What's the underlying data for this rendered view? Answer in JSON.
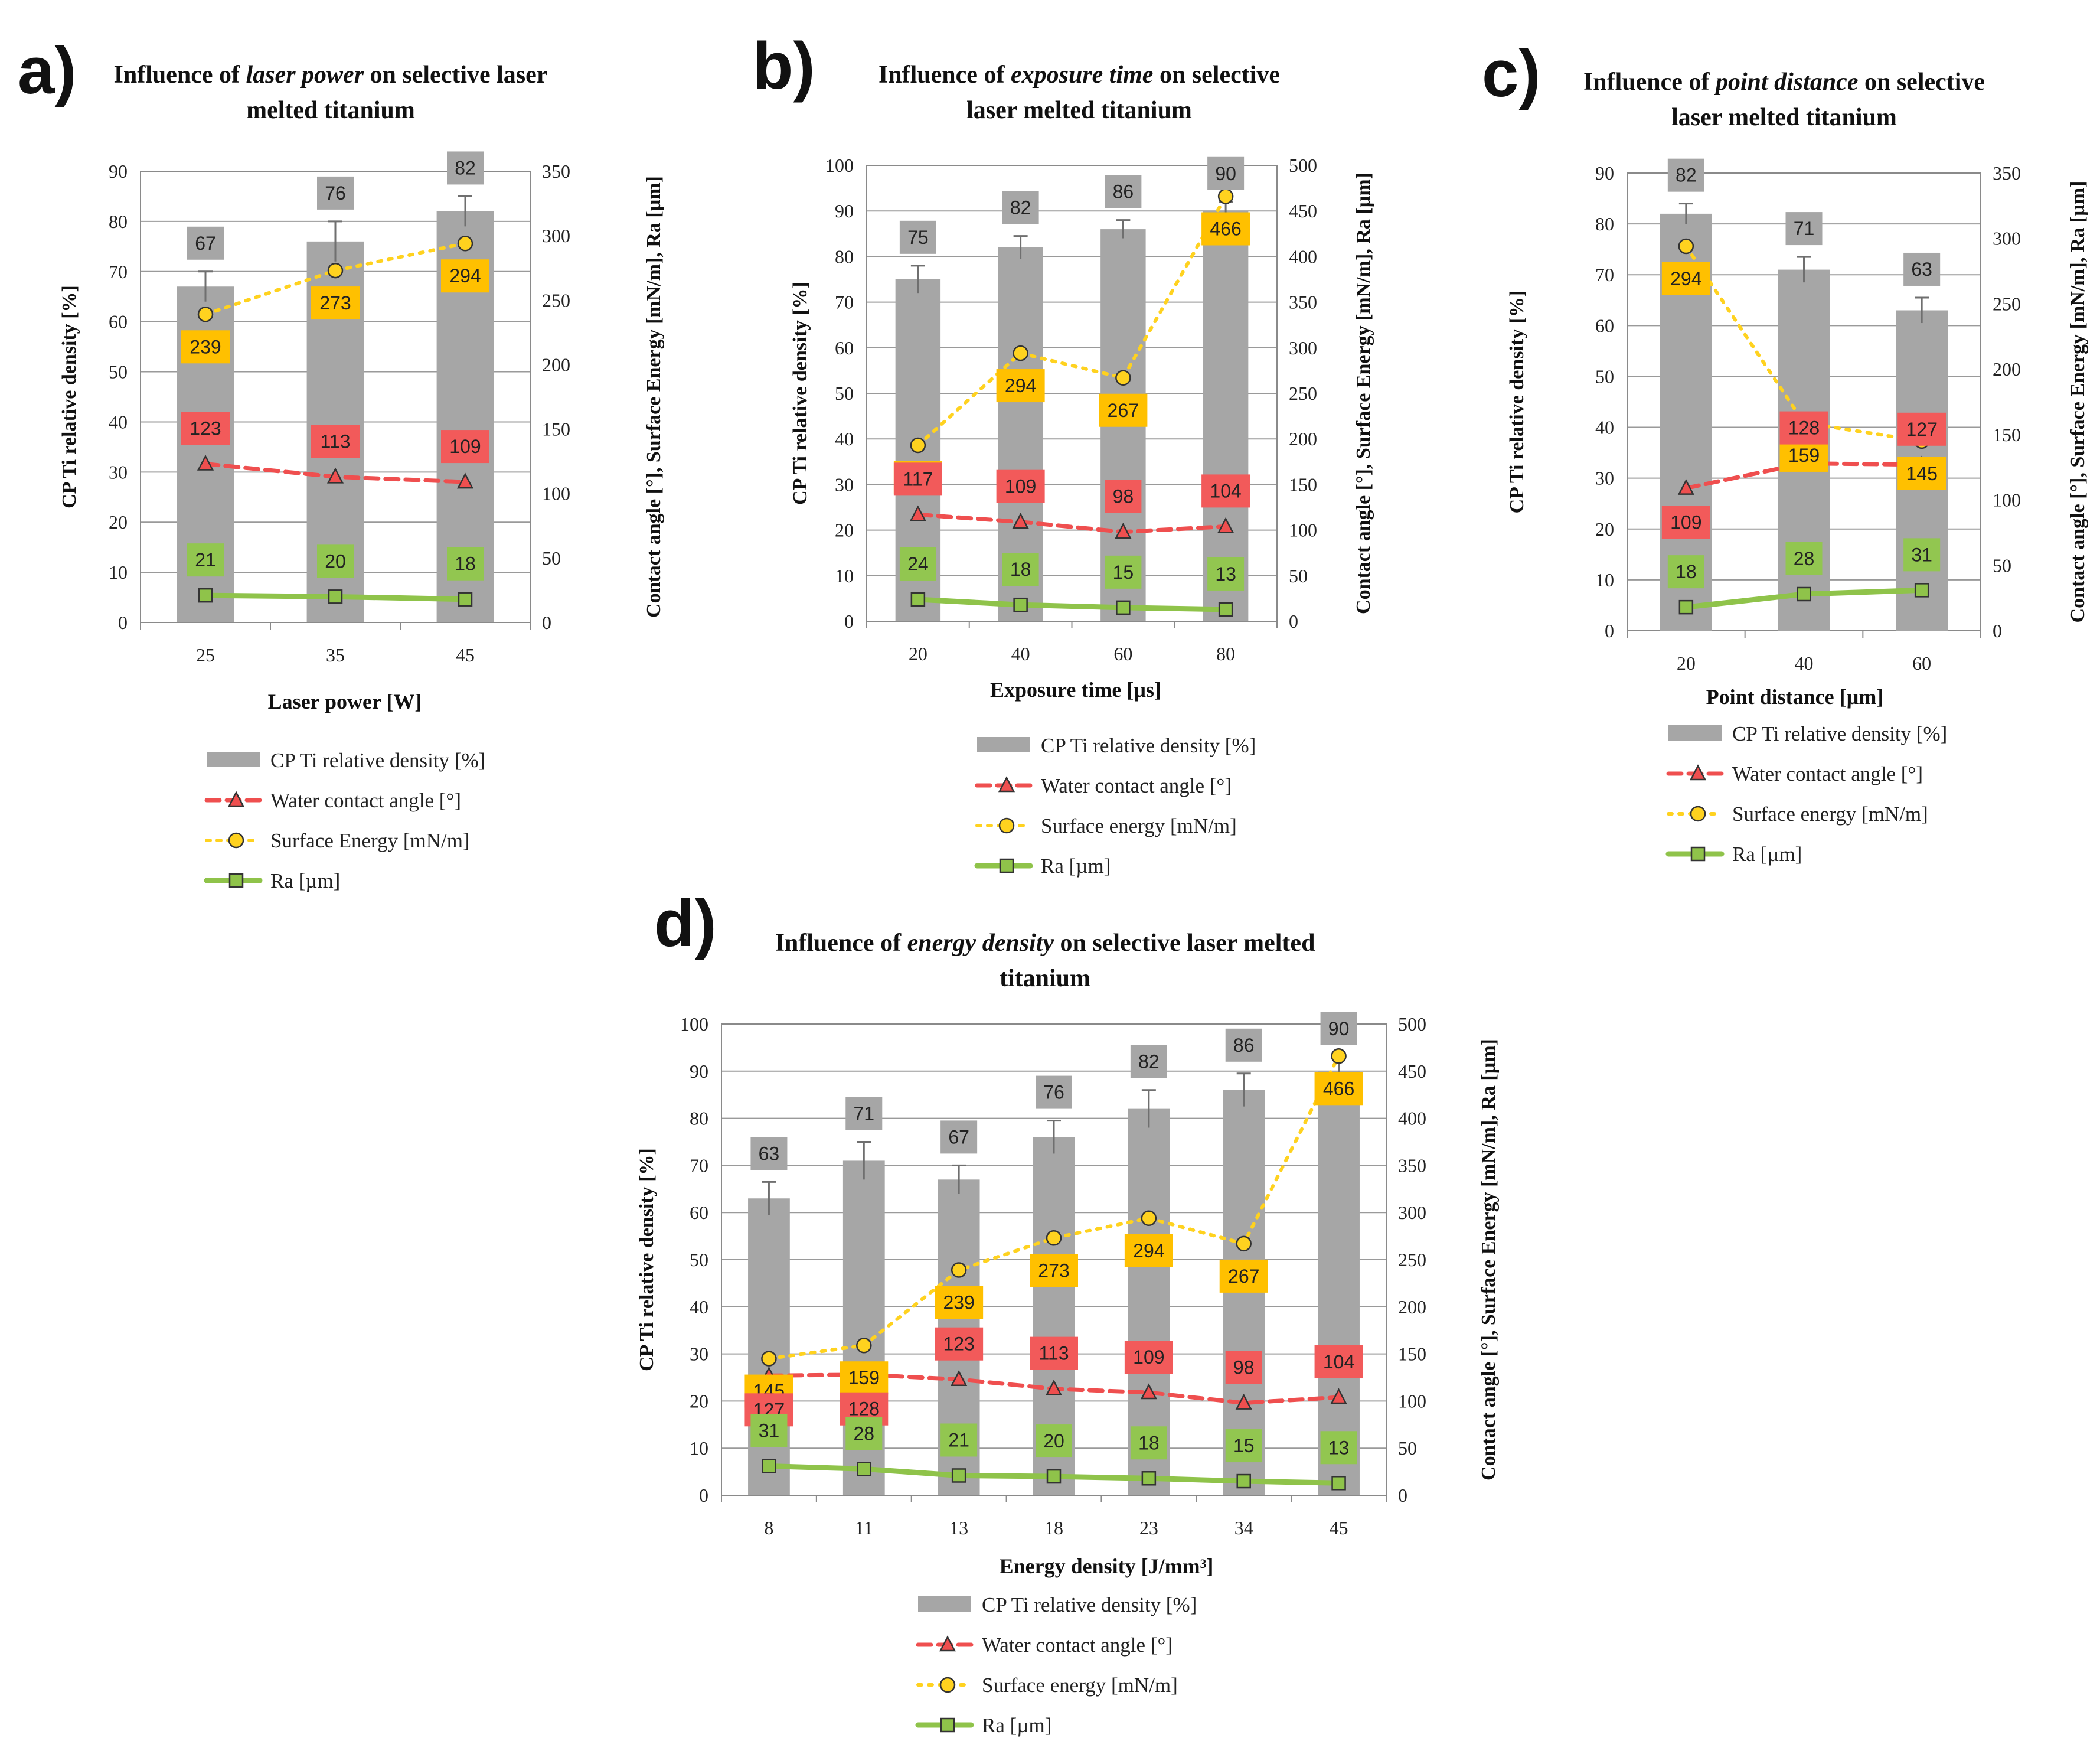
{
  "colors": {
    "bar": "#a6a6a6",
    "bar_label_bg": "#a6a6a6",
    "contact": "#ef4f4f",
    "contact_label_bg": "#f25a5a",
    "surface": "#ffd21f",
    "surface_label_bg": "#ffc000",
    "ra": "#8fc34a",
    "ra_label_bg": "#92c650",
    "errorbar": "#6f6f6f"
  },
  "chart_data": [
    {
      "id": "a",
      "type": "bar",
      "letter": "a)",
      "title_parts": [
        {
          "text": "Influence of ",
          "italic": false
        },
        {
          "text": "laser power",
          "italic": true
        },
        {
          "text": " on selective laser",
          "italic": false
        }
      ],
      "title_line2": "melted titanium",
      "categories": [
        "25",
        "35",
        "45"
      ],
      "xlabel": "Laser power [W]",
      "ylabel_left": "CP Ti relative density [%]",
      "ylabel_right": "Contact angle [°], Surface Energy [mN/m], Ra [µm]",
      "ylim_left": [
        0,
        90
      ],
      "ylim_right": [
        0,
        350
      ],
      "yticks_left": [
        "0",
        "10",
        "20",
        "30",
        "40",
        "50",
        "60",
        "70",
        "80",
        "90"
      ],
      "yticks_right": [
        "0",
        "50",
        "100",
        "150",
        "200",
        "250",
        "300",
        "350"
      ],
      "density": [
        67,
        76,
        82
      ],
      "density_err": [
        3,
        4,
        3
      ],
      "contact_angle": [
        123,
        113,
        109
      ],
      "surface_energy": [
        239,
        273,
        294
      ],
      "ra": [
        21,
        20,
        18
      ],
      "legend": [
        {
          "kind": "bar",
          "label": "CP Ti relative density [%]"
        },
        {
          "kind": "contact",
          "label": "Water contact angle [°]"
        },
        {
          "kind": "surface",
          "label": "Surface Energy [mN/m]"
        },
        {
          "kind": "ra",
          "label": "Ra [µm]"
        }
      ]
    },
    {
      "id": "b",
      "type": "bar",
      "letter": "b)",
      "title_parts": [
        {
          "text": "Influence of ",
          "italic": false
        },
        {
          "text": "exposure time",
          "italic": true
        },
        {
          "text": " on selective",
          "italic": false
        }
      ],
      "title_line2": "laser melted titanium",
      "categories": [
        "20",
        "40",
        "60",
        "80"
      ],
      "xlabel": "Exposure time [µs]",
      "ylabel_left": "CP Ti relative density [%]",
      "ylabel_right": "Contact angle [°], Surface Energy [mN/m], Ra [µm]",
      "ylim_left": [
        0,
        100
      ],
      "ylim_right": [
        0,
        500
      ],
      "yticks_left": [
        "0",
        "10",
        "20",
        "30",
        "40",
        "50",
        "60",
        "70",
        "80",
        "90",
        "100"
      ],
      "yticks_right": [
        "0",
        "50",
        "100",
        "150",
        "200",
        "250",
        "300",
        "350",
        "400",
        "450",
        "500"
      ],
      "density": [
        75,
        82,
        86,
        90
      ],
      "density_err": [
        3,
        2.5,
        2,
        2
      ],
      "contact_angle": [
        117,
        109,
        98,
        104
      ],
      "surface_energy": [
        193,
        294,
        267,
        466
      ],
      "ra": [
        24,
        18,
        15,
        13
      ],
      "legend": [
        {
          "kind": "bar",
          "label": "CP Ti relative density [%]"
        },
        {
          "kind": "contact",
          "label": "Water contact angle [°]"
        },
        {
          "kind": "surface",
          "label": "Surface energy [mN/m]"
        },
        {
          "kind": "ra",
          "label": "Ra [µm]"
        }
      ]
    },
    {
      "id": "c",
      "type": "bar",
      "letter": "c)",
      "title_parts": [
        {
          "text": "Influence of ",
          "italic": false
        },
        {
          "text": "point distance",
          "italic": true
        },
        {
          "text": " on selective",
          "italic": false
        }
      ],
      "title_line2": "laser melted titanium",
      "categories": [
        "20",
        "40",
        "60"
      ],
      "xlabel": "Point distance [µm]",
      "ylabel_left": "CP Ti relative density [%]",
      "ylabel_right": "Contact angle [°], Surface Energy [mN/m], Ra [µm]",
      "ylim_left": [
        0,
        90
      ],
      "ylim_right": [
        0,
        350
      ],
      "yticks_left": [
        "0",
        "10",
        "20",
        "30",
        "40",
        "50",
        "60",
        "70",
        "80",
        "90"
      ],
      "yticks_right": [
        "0",
        "50",
        "100",
        "150",
        "200",
        "250",
        "300",
        "350"
      ],
      "density": [
        82,
        71,
        63
      ],
      "density_err": [
        2,
        2.5,
        2.5
      ],
      "contact_angle": [
        109,
        128,
        127
      ],
      "surface_energy": [
        294,
        159,
        145
      ],
      "ra": [
        18,
        28,
        31
      ],
      "legend": [
        {
          "kind": "bar",
          "label": "CP Ti relative density [%]"
        },
        {
          "kind": "contact",
          "label": "Water contact angle [°]"
        },
        {
          "kind": "surface",
          "label": "Surface energy [mN/m]"
        },
        {
          "kind": "ra",
          "label": "Ra [µm]"
        }
      ]
    },
    {
      "id": "d",
      "type": "bar",
      "letter": "d)",
      "title_parts": [
        {
          "text": "Influence of ",
          "italic": false
        },
        {
          "text": "energy density",
          "italic": true
        },
        {
          "text": " on selective laser melted",
          "italic": false
        }
      ],
      "title_line2": "titanium",
      "categories": [
        "8",
        "11",
        "13",
        "18",
        "23",
        "34",
        "45"
      ],
      "xlabel": "Energy density [J/mm³]",
      "ylabel_left": "CP Ti relative density [%]",
      "ylabel_right": "Contact angle [°], Surface Energy [mN/m], Ra [µm]",
      "ylim_left": [
        0,
        100
      ],
      "ylim_right": [
        0,
        500
      ],
      "yticks_left": [
        "0",
        "10",
        "20",
        "30",
        "40",
        "50",
        "60",
        "70",
        "80",
        "90",
        "100"
      ],
      "yticks_right": [
        "0",
        "50",
        "100",
        "150",
        "200",
        "250",
        "300",
        "350",
        "400",
        "450",
        "500"
      ],
      "density": [
        63,
        71,
        67,
        76,
        82,
        86,
        90
      ],
      "density_err": [
        3.5,
        4,
        3,
        3.5,
        4,
        3.5,
        3
      ],
      "contact_angle": [
        127,
        128,
        123,
        113,
        109,
        98,
        104
      ],
      "surface_energy": [
        145,
        159,
        239,
        273,
        294,
        267,
        466
      ],
      "ra": [
        31,
        28,
        21,
        20,
        18,
        15,
        13
      ],
      "legend": [
        {
          "kind": "bar",
          "label": "CP Ti relative density [%]"
        },
        {
          "kind": "contact",
          "label": "Water contact angle [°]"
        },
        {
          "kind": "surface",
          "label": "Surface energy [mN/m]"
        },
        {
          "kind": "ra",
          "label": "Ra [µm]"
        }
      ]
    }
  ]
}
